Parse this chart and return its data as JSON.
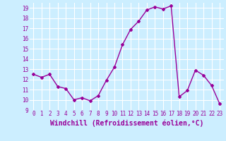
{
  "x": [
    0,
    1,
    2,
    3,
    4,
    5,
    6,
    7,
    8,
    9,
    10,
    11,
    12,
    13,
    14,
    15,
    16,
    17,
    18,
    19,
    20,
    21,
    22,
    23
  ],
  "y": [
    12.5,
    12.2,
    12.5,
    11.3,
    11.1,
    10.0,
    10.2,
    9.9,
    10.4,
    11.9,
    13.2,
    15.4,
    16.9,
    17.7,
    18.8,
    19.1,
    18.9,
    19.2,
    10.3,
    10.9,
    12.9,
    12.4,
    11.4,
    9.6
  ],
  "line_color": "#990099",
  "marker": "D",
  "marker_size": 2,
  "xlabel": "Windchill (Refroidissement éolien,°C)",
  "xlabel_fontsize": 7,
  "ylim": [
    9,
    19.5
  ],
  "xlim": [
    -0.5,
    23.5
  ],
  "yticks": [
    9,
    10,
    11,
    12,
    13,
    14,
    15,
    16,
    17,
    18,
    19
  ],
  "xticks": [
    0,
    1,
    2,
    3,
    4,
    5,
    6,
    7,
    8,
    9,
    10,
    11,
    12,
    13,
    14,
    15,
    16,
    17,
    18,
    19,
    20,
    21,
    22,
    23
  ],
  "tick_fontsize": 5.5,
  "background_color": "#cceeff",
  "grid_color": "#ffffff",
  "line_width": 1.0
}
